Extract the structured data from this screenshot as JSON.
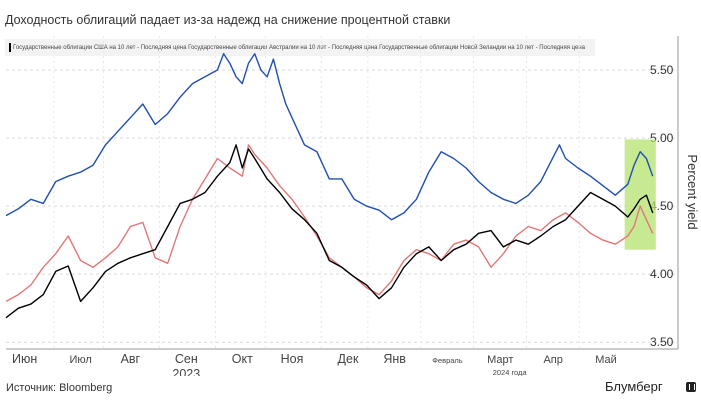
{
  "title": "Доходность облигаций падает из-за надежд на снижение процентной ставки",
  "legend_text": "Государственные облигации США на 10 лет - Последняя цена Государственные облигации Австралии на 10 лет - Последняя цена Государственные облигации Новой Зеландии на 10 лет - Последняя цена",
  "source": "Источник: Bloomberg",
  "brand": "Блумберг",
  "brand_icon": "bloomberg-logo-icon",
  "colors": {
    "us": "#1f4fb0",
    "australia": "#000000",
    "new_zealand": "#e07878",
    "highlight": "#b4e26e"
  },
  "chart_data": {
    "type": "line",
    "title": "Доходность облигаций падает из-за надежд на снижение процентной ставки",
    "ylabel": "Percent yield",
    "xlabel": "",
    "ylim": [
      3.45,
      5.75
    ],
    "xlim": [
      0,
      101
    ],
    "y_ticks": [
      {
        "value": 3.5,
        "label": "3.50"
      },
      {
        "value": 4.0,
        "label": "4.00"
      },
      {
        "value": 4.5,
        "label": "4.50"
      },
      {
        "value": 5.0,
        "label": "5.00"
      },
      {
        "value": 5.5,
        "label": "5.50"
      }
    ],
    "x_ticks": [
      {
        "pos": 3,
        "label": "Июн",
        "size": "large"
      },
      {
        "pos": 12,
        "label": "Июл",
        "size": "small"
      },
      {
        "pos": 20,
        "label": "Авг",
        "size": "large"
      },
      {
        "pos": 29,
        "label": "Сен",
        "size": "large"
      },
      {
        "pos": 38,
        "label": "Окт",
        "size": "large"
      },
      {
        "pos": 46,
        "label": "Ноя",
        "size": "large"
      },
      {
        "pos": 55,
        "label": "Дек",
        "size": "large"
      },
      {
        "pos": 62.5,
        "label": "Янв",
        "size": "large"
      },
      {
        "pos": 71,
        "label": "Февраль",
        "size": "tiny"
      },
      {
        "pos": 79.5,
        "label": "Март",
        "size": "small"
      },
      {
        "pos": 88,
        "label": "Апр",
        "size": "small"
      },
      {
        "pos": 96.5,
        "label": "Май",
        "size": "small"
      }
    ],
    "year_labels": [
      {
        "pos": 29,
        "label": "2023",
        "size": "large"
      },
      {
        "pos": 81,
        "label": "2024 года",
        "size": "tiny"
      }
    ],
    "highlight": {
      "x0": 99.5,
      "x1": 104.5,
      "y0": 4.18,
      "y1": 4.99
    },
    "series": [
      {
        "name": "Государственные облигации США на 10 лет",
        "color": "#1f4fb0",
        "x": [
          0,
          2,
          4,
          6,
          8,
          10,
          12,
          14,
          16,
          18,
          20,
          22,
          24,
          26,
          28,
          30,
          32,
          34,
          35,
          36,
          37,
          38,
          39,
          40,
          41,
          42,
          43,
          44,
          45,
          46,
          48,
          50,
          52,
          54,
          56,
          58,
          60,
          62,
          64,
          66,
          68,
          70,
          72,
          74,
          76,
          78,
          80,
          82,
          84,
          86,
          88,
          89,
          90,
          92,
          94,
          96,
          98,
          100,
          101,
          102,
          103,
          104
        ],
        "values": [
          4.43,
          4.48,
          4.55,
          4.52,
          4.68,
          4.72,
          4.75,
          4.8,
          4.95,
          5.05,
          5.15,
          5.25,
          5.1,
          5.18,
          5.3,
          5.4,
          5.45,
          5.5,
          5.62,
          5.55,
          5.45,
          5.4,
          5.55,
          5.62,
          5.5,
          5.45,
          5.58,
          5.4,
          5.25,
          5.15,
          4.95,
          4.9,
          4.7,
          4.7,
          4.55,
          4.5,
          4.47,
          4.4,
          4.45,
          4.55,
          4.75,
          4.9,
          4.85,
          4.78,
          4.68,
          4.6,
          4.55,
          4.52,
          4.58,
          4.68,
          4.86,
          4.95,
          4.85,
          4.78,
          4.72,
          4.65,
          4.58,
          4.66,
          4.8,
          4.9,
          4.85,
          4.72
        ]
      },
      {
        "name": "Государственные облигации Австралии на 10 лет",
        "color": "#000000",
        "x": [
          0,
          2,
          4,
          6,
          8,
          10,
          12,
          14,
          16,
          18,
          20,
          22,
          24,
          26,
          28,
          30,
          32,
          34,
          36,
          37,
          38,
          39,
          40,
          42,
          44,
          46,
          48,
          50,
          52,
          54,
          56,
          58,
          60,
          62,
          64,
          66,
          68,
          70,
          72,
          74,
          76,
          78,
          80,
          82,
          84,
          86,
          88,
          90,
          92,
          94,
          96,
          98,
          100,
          101,
          102,
          103,
          104
        ],
        "values": [
          3.68,
          3.75,
          3.78,
          3.85,
          4.02,
          4.06,
          3.8,
          3.9,
          4.02,
          4.08,
          4.12,
          4.15,
          4.18,
          4.35,
          4.52,
          4.55,
          4.6,
          4.72,
          4.82,
          4.95,
          4.78,
          4.92,
          4.85,
          4.7,
          4.6,
          4.48,
          4.4,
          4.3,
          4.1,
          4.05,
          3.98,
          3.92,
          3.82,
          3.9,
          4.05,
          4.15,
          4.2,
          4.1,
          4.18,
          4.22,
          4.3,
          4.32,
          4.2,
          4.25,
          4.22,
          4.28,
          4.35,
          4.4,
          4.5,
          4.6,
          4.55,
          4.5,
          4.42,
          4.48,
          4.55,
          4.58,
          4.45
        ]
      },
      {
        "name": "Государственные облигации Новой Зеландии на 10 лет",
        "color": "#e07878",
        "x": [
          0,
          2,
          4,
          6,
          8,
          10,
          12,
          14,
          16,
          18,
          20,
          22,
          24,
          26,
          28,
          30,
          32,
          34,
          36,
          38,
          39,
          40,
          42,
          44,
          46,
          48,
          50,
          52,
          54,
          56,
          58,
          60,
          62,
          64,
          66,
          68,
          70,
          72,
          74,
          76,
          78,
          80,
          82,
          84,
          86,
          88,
          90,
          92,
          94,
          96,
          98,
          100,
          101,
          102,
          103,
          104
        ],
        "values": [
          3.8,
          3.85,
          3.92,
          4.05,
          4.15,
          4.28,
          4.1,
          4.05,
          4.12,
          4.2,
          4.35,
          4.38,
          4.12,
          4.08,
          4.35,
          4.55,
          4.7,
          4.85,
          4.78,
          4.72,
          4.95,
          4.88,
          4.78,
          4.65,
          4.55,
          4.42,
          4.28,
          4.12,
          4.05,
          3.98,
          3.9,
          3.85,
          3.95,
          4.1,
          4.18,
          4.15,
          4.1,
          4.22,
          4.25,
          4.2,
          4.05,
          4.15,
          4.28,
          4.35,
          4.32,
          4.4,
          4.45,
          4.38,
          4.3,
          4.25,
          4.22,
          4.28,
          4.35,
          4.5,
          4.4,
          4.3
        ]
      }
    ]
  }
}
